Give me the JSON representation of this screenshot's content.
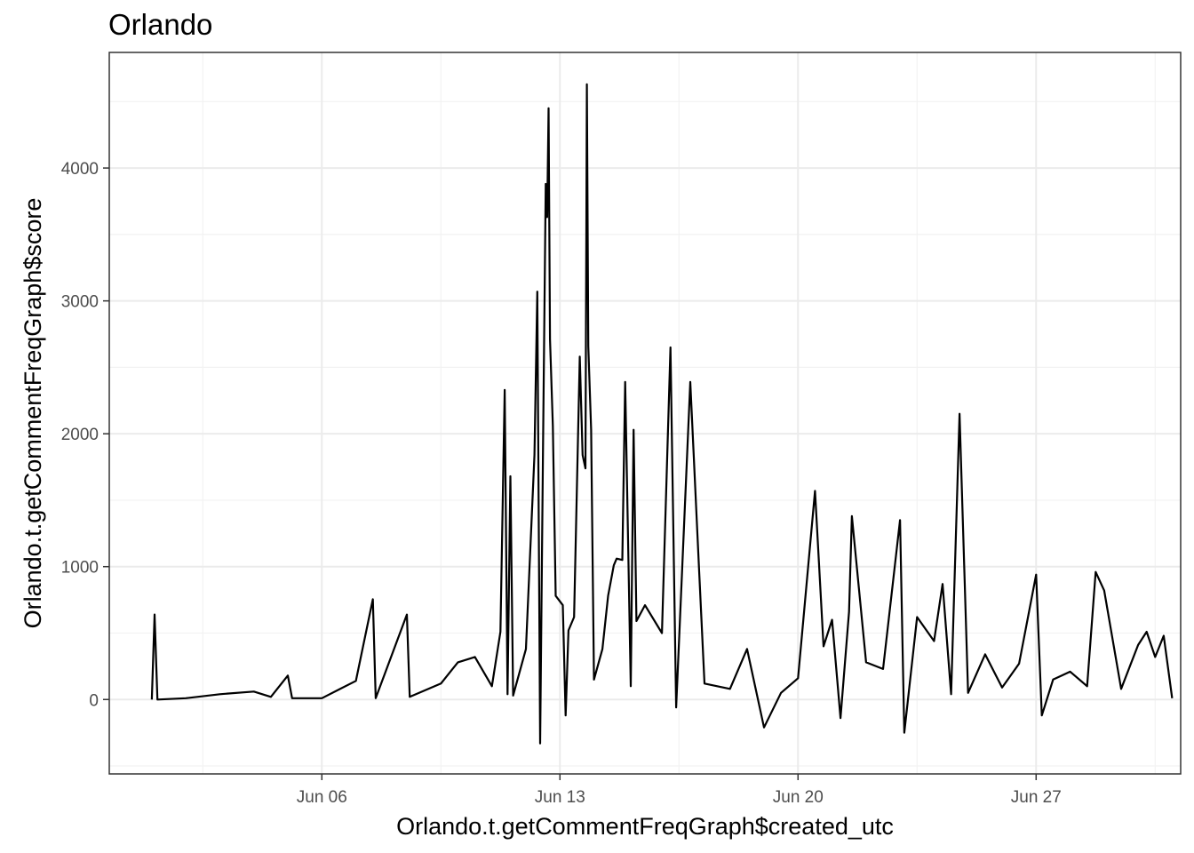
{
  "chart_data": {
    "type": "line",
    "title": "Orlando",
    "xlabel": "Orlando.t.getCommentFreqGraph$created_utc",
    "ylabel": "Orlando.t.getCommentFreqGraph$score",
    "x_axis": {
      "kind": "date",
      "range": [
        "2016-05-30T18:00",
        "2016-07-01T06:00"
      ],
      "ticks": [
        {
          "date": "2016-06-06",
          "label": "Jun 06"
        },
        {
          "date": "2016-06-13",
          "label": "Jun 13"
        },
        {
          "date": "2016-06-20",
          "label": "Jun 20"
        },
        {
          "date": "2016-06-27",
          "label": "Jun 27"
        }
      ],
      "minor_ticks": [
        "2016-06-02T12:00",
        "2016-06-09T12:00",
        "2016-06-16T12:00",
        "2016-06-23T12:00",
        "2016-06-30T12:00"
      ]
    },
    "y_axis": {
      "range": [
        -560,
        4870
      ],
      "ticks": [
        0,
        1000,
        2000,
        3000,
        4000
      ],
      "minor_ticks": [
        -500,
        500,
        1500,
        2500,
        3500,
        4500
      ]
    },
    "grid": true,
    "series": [
      {
        "color": "#000000",
        "points": [
          [
            "2016-06-01T00:00",
            0
          ],
          [
            "2016-06-01T02:00",
            640
          ],
          [
            "2016-06-01T04:00",
            0
          ],
          [
            "2016-06-02T00:00",
            10
          ],
          [
            "2016-06-03T00:00",
            40
          ],
          [
            "2016-06-04T00:00",
            60
          ],
          [
            "2016-06-04T12:00",
            20
          ],
          [
            "2016-06-05T00:00",
            180
          ],
          [
            "2016-06-05T03:00",
            10
          ],
          [
            "2016-06-06T00:00",
            10
          ],
          [
            "2016-06-07T00:00",
            140
          ],
          [
            "2016-06-07T12:00",
            755
          ],
          [
            "2016-06-07T14:00",
            10
          ],
          [
            "2016-06-08T12:00",
            640
          ],
          [
            "2016-06-08T14:00",
            20
          ],
          [
            "2016-06-09T12:00",
            120
          ],
          [
            "2016-06-10T00:00",
            280
          ],
          [
            "2016-06-10T12:00",
            320
          ],
          [
            "2016-06-11T00:00",
            100
          ],
          [
            "2016-06-11T06:00",
            510
          ],
          [
            "2016-06-11T09:00",
            2330
          ],
          [
            "2016-06-11T11:00",
            40
          ],
          [
            "2016-06-11T13:00",
            1680
          ],
          [
            "2016-06-11T15:00",
            30
          ],
          [
            "2016-06-12T00:00",
            380
          ],
          [
            "2016-06-12T06:00",
            1840
          ],
          [
            "2016-06-12T08:00",
            3070
          ],
          [
            "2016-06-12T10:00",
            -330
          ],
          [
            "2016-06-12T12:00",
            1800
          ],
          [
            "2016-06-12T14:00",
            3880
          ],
          [
            "2016-06-12T15:00",
            3630
          ],
          [
            "2016-06-12T16:00",
            4450
          ],
          [
            "2016-06-12T17:00",
            2710
          ],
          [
            "2016-06-12T19:00",
            2060
          ],
          [
            "2016-06-12T21:00",
            780
          ],
          [
            "2016-06-13T02:00",
            710
          ],
          [
            "2016-06-13T04:00",
            -120
          ],
          [
            "2016-06-13T06:00",
            520
          ],
          [
            "2016-06-13T10:00",
            620
          ],
          [
            "2016-06-13T14:00",
            2580
          ],
          [
            "2016-06-13T16:00",
            1840
          ],
          [
            "2016-06-13T18:00",
            1740
          ],
          [
            "2016-06-13T19:00",
            4630
          ],
          [
            "2016-06-13T20:00",
            2660
          ],
          [
            "2016-06-13T22:00",
            2030
          ],
          [
            "2016-06-14T00:00",
            150
          ],
          [
            "2016-06-14T06:00",
            380
          ],
          [
            "2016-06-14T10:00",
            780
          ],
          [
            "2016-06-14T14:00",
            1010
          ],
          [
            "2016-06-14T16:00",
            1060
          ],
          [
            "2016-06-14T20:00",
            1050
          ],
          [
            "2016-06-14T22:00",
            2390
          ],
          [
            "2016-06-15T02:00",
            100
          ],
          [
            "2016-06-15T04:00",
            2030
          ],
          [
            "2016-06-15T06:00",
            590
          ],
          [
            "2016-06-15T12:00",
            710
          ],
          [
            "2016-06-16T00:00",
            500
          ],
          [
            "2016-06-16T06:00",
            2650
          ],
          [
            "2016-06-16T10:00",
            -60
          ],
          [
            "2016-06-16T20:00",
            2390
          ],
          [
            "2016-06-17T02:00",
            1020
          ],
          [
            "2016-06-17T06:00",
            120
          ],
          [
            "2016-06-18T00:00",
            80
          ],
          [
            "2016-06-18T12:00",
            380
          ],
          [
            "2016-06-19T00:00",
            -210
          ],
          [
            "2016-06-19T12:00",
            50
          ],
          [
            "2016-06-20T00:00",
            160
          ],
          [
            "2016-06-20T12:00",
            1570
          ],
          [
            "2016-06-20T18:00",
            400
          ],
          [
            "2016-06-21T00:00",
            600
          ],
          [
            "2016-06-21T06:00",
            -140
          ],
          [
            "2016-06-21T12:00",
            660
          ],
          [
            "2016-06-21T14:00",
            1380
          ],
          [
            "2016-06-22T00:00",
            280
          ],
          [
            "2016-06-22T12:00",
            230
          ],
          [
            "2016-06-23T00:00",
            1350
          ],
          [
            "2016-06-23T03:00",
            -250
          ],
          [
            "2016-06-23T12:00",
            620
          ],
          [
            "2016-06-24T00:00",
            440
          ],
          [
            "2016-06-24T06:00",
            870
          ],
          [
            "2016-06-24T12:00",
            40
          ],
          [
            "2016-06-24T18:00",
            2150
          ],
          [
            "2016-06-25T00:00",
            50
          ],
          [
            "2016-06-25T12:00",
            340
          ],
          [
            "2016-06-26T00:00",
            90
          ],
          [
            "2016-06-26T12:00",
            270
          ],
          [
            "2016-06-27T00:00",
            940
          ],
          [
            "2016-06-27T04:00",
            -120
          ],
          [
            "2016-06-27T12:00",
            150
          ],
          [
            "2016-06-28T00:00",
            210
          ],
          [
            "2016-06-28T12:00",
            100
          ],
          [
            "2016-06-28T18:00",
            960
          ],
          [
            "2016-06-29T00:00",
            820
          ],
          [
            "2016-06-29T12:00",
            80
          ],
          [
            "2016-06-30T00:00",
            410
          ],
          [
            "2016-06-30T06:00",
            510
          ],
          [
            "2016-06-30T12:00",
            320
          ],
          [
            "2016-06-30T18:00",
            480
          ],
          [
            "2016-07-01T00:00",
            10
          ]
        ]
      }
    ]
  }
}
